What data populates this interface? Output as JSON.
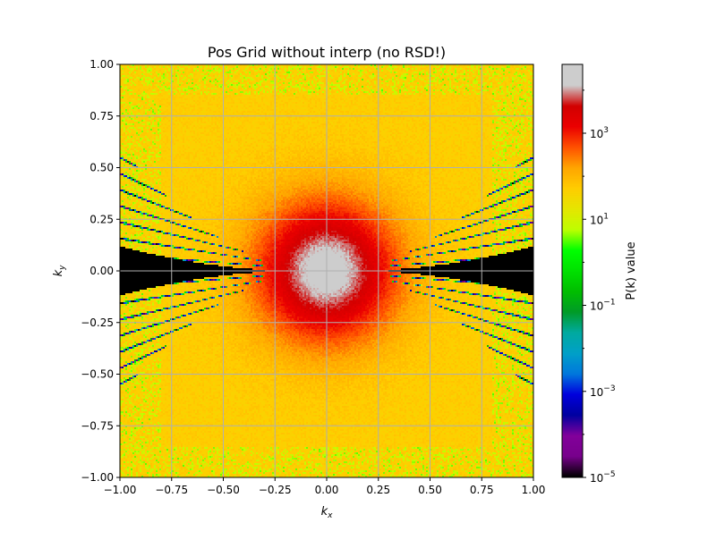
{
  "chart_data": {
    "type": "heatmap",
    "title": "Pos Grid without interp (no RSD!)",
    "xlabel_base": "k",
    "xlabel_sub": "x",
    "ylabel_base": "k",
    "ylabel_sub": "y",
    "xlim": [
      -1.0,
      1.0
    ],
    "ylim": [
      -1.0,
      1.0
    ],
    "x_ticks": [
      -1.0,
      -0.75,
      -0.5,
      -0.25,
      0.0,
      0.25,
      0.5,
      0.75,
      1.0
    ],
    "x_tick_labels": [
      "−1.00",
      "−0.75",
      "−0.50",
      "−0.25",
      "0.00",
      "0.25",
      "0.50",
      "0.75",
      "1.00"
    ],
    "y_ticks": [
      -1.0,
      -0.75,
      -0.5,
      -0.25,
      0.0,
      0.25,
      0.5,
      0.75,
      1.0
    ],
    "y_tick_labels": [
      "−1.00",
      "−0.75",
      "−0.50",
      "−0.25",
      "0.00",
      "0.25",
      "0.50",
      "0.75",
      "1.00"
    ],
    "grid": true,
    "grid_color": "#b0b0b0",
    "colorbar": {
      "label": "P(k) value",
      "scale": "log",
      "vmin_exp": -5,
      "vmax_exp": 4.6,
      "tick_exponents": [
        -5,
        -3,
        -1,
        1,
        3
      ],
      "tick_base": "10",
      "colormap": "nipy_spectral"
    },
    "field_description": {
      "peak_log10": 4.4,
      "background_log10": 1.7,
      "center_value_log10": 4.6,
      "null_wedge_log10": -5
    }
  }
}
